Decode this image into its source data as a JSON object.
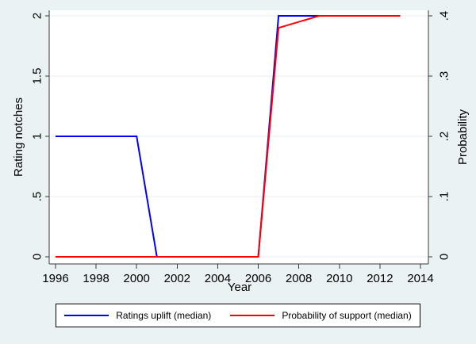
{
  "figure": {
    "background_color": "#eaf2f3",
    "plot_background_color": "#ffffff",
    "grid_color": "#e4eef0",
    "axis_line_color": "#3a3a3a",
    "tick_label_color": "#000000"
  },
  "chart_data": {
    "type": "line",
    "title": "",
    "xlabel": "Year",
    "ylabel_left": "Rating notches",
    "ylabel_right": "Probability",
    "grid": "horizontal",
    "legend_position": "bottom",
    "x_ticks": [
      1996,
      1998,
      2000,
      2002,
      2004,
      2006,
      2008,
      2010,
      2012,
      2014
    ],
    "x_range": [
      1996,
      2014
    ],
    "left_axis": {
      "title": "Rating notches",
      "range": [
        0,
        2
      ],
      "ticks": [
        {
          "value": 0,
          "label": "0"
        },
        {
          "value": 0.5,
          "label": ".5"
        },
        {
          "value": 1,
          "label": "1"
        },
        {
          "value": 1.5,
          "label": "1.5"
        },
        {
          "value": 2,
          "label": "2"
        }
      ]
    },
    "right_axis": {
      "title": "Probability",
      "range": [
        0,
        0.4
      ],
      "ticks": [
        {
          "value": 0,
          "label": "0"
        },
        {
          "value": 0.1,
          "label": ".1"
        },
        {
          "value": 0.2,
          "label": ".2"
        },
        {
          "value": 0.3,
          "label": ".3"
        },
        {
          "value": 0.4,
          "label": ".4"
        }
      ]
    },
    "series": [
      {
        "name": "Ratings uplift (median)",
        "color": "#0000ff",
        "axis": "left",
        "points": [
          [
            1996,
            1
          ],
          [
            2000,
            1
          ],
          [
            2001,
            0
          ],
          [
            2006,
            0
          ],
          [
            2007,
            2
          ],
          [
            2013,
            2
          ]
        ]
      },
      {
        "name": "Probability of support (median)",
        "color": "#ff0000",
        "axis": "right",
        "points": [
          [
            1996,
            0
          ],
          [
            2006,
            0
          ],
          [
            2007,
            0.38
          ],
          [
            2009,
            0.4
          ],
          [
            2013,
            0.4
          ]
        ]
      }
    ]
  },
  "legend": {
    "entries": [
      {
        "label": "Ratings uplift (median)",
        "color": "#0000ff"
      },
      {
        "label": "Probability of support (median)",
        "color": "#ff0000"
      }
    ]
  }
}
